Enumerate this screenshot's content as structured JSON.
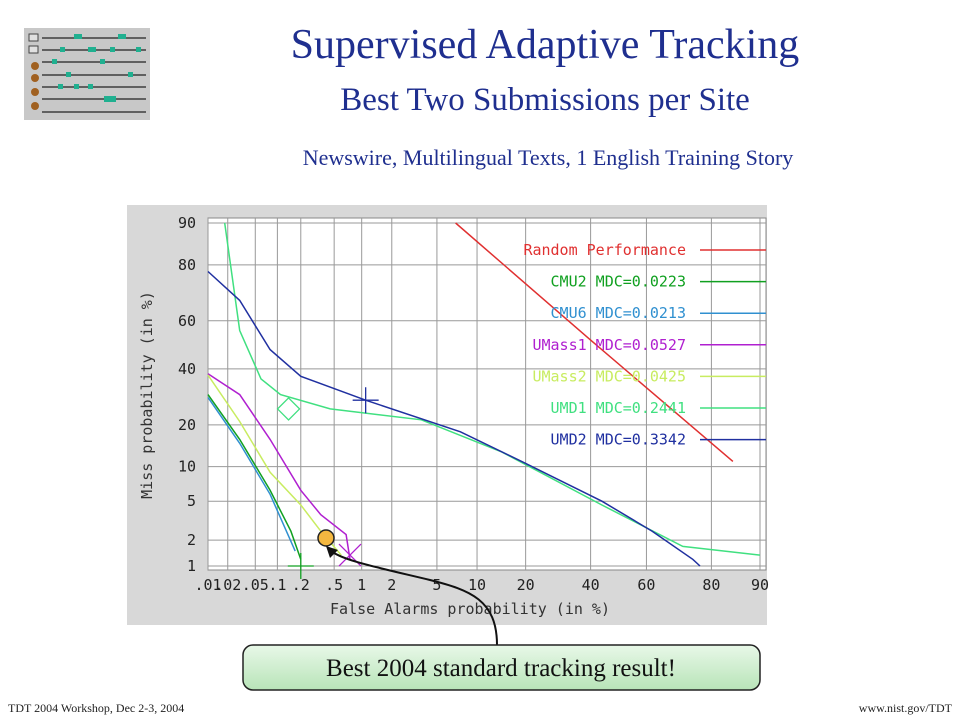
{
  "chart_data": {
    "type": "det",
    "title": "Supervised Adaptive Tracking",
    "subtitle": "Best Two Submissions per Site",
    "description": "Newswire, Multilingual Texts, 1 English Training Story",
    "xlabel": "False Alarms probability (in %)",
    "ylabel": "Miss probability (in %)",
    "scale": "probit",
    "grid": true,
    "legend": "upper right",
    "xlim": [
      0.01,
      90
    ],
    "ylim": [
      1,
      90
    ],
    "xticks": [
      {
        "value": 0.01,
        "label": ".01"
      },
      {
        "value": 0.02,
        "label": ".02"
      },
      {
        "value": 0.05,
        "label": ".05"
      },
      {
        "value": 0.1,
        "label": ".1"
      },
      {
        "value": 0.2,
        "label": ".2"
      },
      {
        "value": 0.5,
        "label": ".5"
      },
      1,
      2,
      5,
      10,
      20,
      40,
      60,
      80,
      90
    ],
    "yticks": [
      1,
      2,
      5,
      10,
      20,
      40,
      60,
      80,
      90
    ],
    "series": [
      {
        "name": "Random Performance",
        "color": "#e03030",
        "x": [
          7,
          40,
          85
        ],
        "values": [
          90,
          52,
          11
        ]
      },
      {
        "name": "CMU2 MDC=0.0223",
        "color": "#10a020",
        "x": [
          0.01,
          0.03,
          0.08,
          0.15,
          0.2
        ],
        "values": [
          30,
          16,
          6.3,
          2.5,
          1.2
        ],
        "min_point": [
          0.2,
          1
        ],
        "marker": "plus"
      },
      {
        "name": "CMU6 MDC=0.0213",
        "color": "#3090d0",
        "x": [
          0.01,
          0.03,
          0.08,
          0.17
        ],
        "values": [
          29,
          15,
          5.8,
          1.5
        ]
      },
      {
        "name": "UMass1 MDC=0.0527",
        "color": "#b020d0",
        "x": [
          0.01,
          0.03,
          0.08,
          0.2,
          0.35,
          0.68,
          0.75
        ],
        "values": [
          38,
          30,
          16,
          6.3,
          3.7,
          2.3,
          1.2
        ],
        "min_point": [
          0.75,
          1.35
        ],
        "marker": "x"
      },
      {
        "name": "UMass2 MDC=0.0425",
        "color": "#c8ec60",
        "x": [
          0.01,
          0.03,
          0.08,
          0.2,
          0.35,
          0.6
        ],
        "values": [
          37.5,
          21,
          9,
          4.6,
          2.5,
          1.35
        ]
      },
      {
        "name": "UMD1 MDC=0.2441",
        "color": "#40e080",
        "x": [
          0.018,
          0.03,
          0.06,
          0.11,
          0.45,
          3.7,
          14.5,
          44,
          72,
          90
        ],
        "values": [
          90,
          56,
          36,
          30,
          25,
          21.5,
          13,
          4.6,
          1.7,
          1.35
        ],
        "min_point": [
          0.14,
          25
        ],
        "marker": "diamond"
      },
      {
        "name": "UMD2 MDC=0.3342",
        "color": "#2030a0",
        "x": [
          0.01,
          0.03,
          0.08,
          0.2,
          1.1,
          7.6,
          19,
          44,
          62,
          75,
          77
        ],
        "values": [
          78,
          68,
          48,
          37,
          28,
          18,
          11,
          5,
          2.5,
          1.2,
          1
        ],
        "min_point": [
          1.1,
          28
        ],
        "marker": "plus"
      }
    ],
    "annotation": "Best 2004 standard tracking result!"
  },
  "footer": {
    "left": "TDT 2004 Workshop, Dec 2-3, 2004",
    "right": "www.nist.gov/TDT"
  }
}
